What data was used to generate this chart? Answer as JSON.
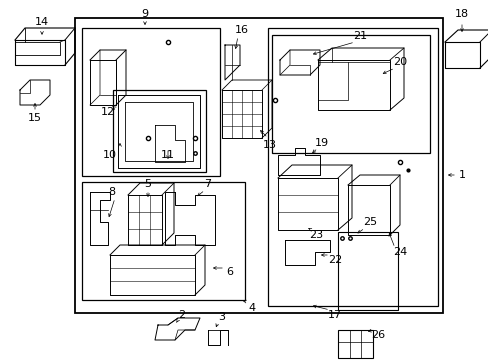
{
  "fig_width": 4.89,
  "fig_height": 3.6,
  "dpi": 100,
  "bg_color": "#ffffff",
  "line_color": "#000000"
}
